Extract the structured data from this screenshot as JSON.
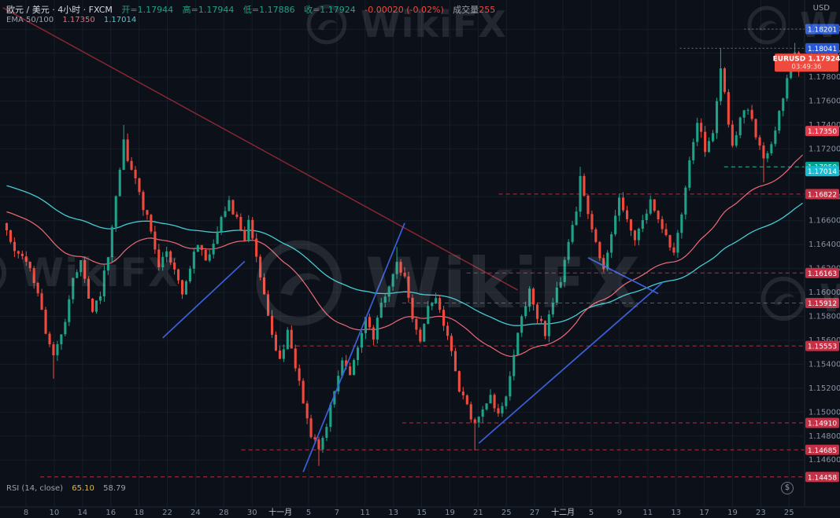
{
  "header": {
    "symbol_line": {
      "title": "欧元 / 美元 · 4小时 · FXCM",
      "open_label": "开=1.17944",
      "high_label": "高=1.17944",
      "low_label": "低=1.17886",
      "close_label": "收=1.17924",
      "change_label": "-0.00020 (-0.02%)",
      "volume_label": "成交量",
      "volume_value": "255"
    },
    "ema_line": {
      "name": "EMA 50/100",
      "ema50": "1.17350",
      "ema100": "1.17014"
    }
  },
  "rsi_line": {
    "name": "RSI (14, close)",
    "value1": "65.10",
    "value2": "58.79"
  },
  "axis_currency": "USD",
  "watermark_text": "WikiFX",
  "dollar_badge": "$",
  "colors": {
    "bg": "#0c1119",
    "grid": "#161d29",
    "up": "#1fa187",
    "down": "#ef4a3e",
    "axis_text": "#87909f",
    "axis_text_bright": "#c6cad3",
    "axis_border": "#1e2634"
  },
  "chart_data": {
    "type": "candlestick",
    "symbol": "EURUSD",
    "pair": "欧元 / 美元",
    "timeframe": "4小时",
    "exchange": "FXCM",
    "last": {
      "open": 1.17944,
      "high": 1.17944,
      "low": 1.17886,
      "close": 1.17924,
      "change": -0.0002,
      "change_pct": "-0.02%",
      "volume": 255,
      "countdown": "03:49:36"
    },
    "price_axis": {
      "min": 1.1424,
      "max": 1.1828,
      "tick_min": 1.146,
      "tick_max": 1.182,
      "tick_step": 0.002
    },
    "time_labels": [
      "8",
      "10",
      "14",
      "16",
      "18",
      "22",
      "24",
      "28",
      "30",
      "十一月",
      "5",
      "7",
      "11",
      "13",
      "15",
      "19",
      "21",
      "25",
      "27",
      "十二月",
      "5",
      "9",
      "11",
      "13",
      "17",
      "19",
      "23",
      "25"
    ],
    "levels": [
      {
        "label": "1.18201",
        "value": 1.18201,
        "badge": "#2757d6",
        "line": "dotted",
        "line_color": "#667083",
        "from": 0.925
      },
      {
        "label": "1.18041",
        "value": 1.18041,
        "badge": "#2757d6",
        "line": "dotted",
        "line_color": "#667083",
        "from": 0.845
      },
      {
        "label": "1.17350",
        "value": 1.1735,
        "badge": "#e13d4e",
        "line": "none",
        "line_color": "",
        "from": 0
      },
      {
        "label": "1.17050",
        "value": 1.1705,
        "badge": "#00a08f",
        "line": "dashed",
        "line_color": "#2bb3a3",
        "from": 0.9
      },
      {
        "label": "1.17014",
        "value": 1.17014,
        "badge": "#18bdd4",
        "line": "none",
        "line_color": "",
        "from": 0
      },
      {
        "label": "1.16822",
        "value": 1.16822,
        "badge": "#c43045",
        "line": "dashed",
        "line_color": "#b03044",
        "from": 0.62
      },
      {
        "label": "1.16163",
        "value": 1.16163,
        "badge": "#c43045",
        "line": "dashed",
        "line_color": "#b03044",
        "from": 0.58
      },
      {
        "label": "1.15912",
        "value": 1.15912,
        "badge": "#c43045",
        "line": "dashed",
        "line_color": "#b03044",
        "from": 0.5
      },
      {
        "label": "1.15553",
        "value": 1.15553,
        "badge": "#c43045",
        "line": "dashed",
        "line_color": "#b03044",
        "from": 0.35
      },
      {
        "label": "1.14910",
        "value": 1.1491,
        "badge": "#c43045",
        "line": "dashed",
        "line_color": "#b03044",
        "from": 0.5
      },
      {
        "label": "1.14685",
        "value": 1.14685,
        "badge": "#c43045",
        "line": "dashed",
        "line_color": "#b03044",
        "from": 0.3
      },
      {
        "label": "1.14458",
        "value": 1.14458,
        "badge": "#c43045",
        "line": "dashed",
        "line_color": "#b03044",
        "from": 0.05
      }
    ],
    "emas": [
      {
        "period": 50,
        "value": 1.1735,
        "color": "#f06878",
        "seed": 1.1668
      },
      {
        "period": 100,
        "value": 1.17014,
        "color": "#45ccd3",
        "seed": 1.169
      }
    ],
    "trendlines": [
      {
        "name": "downtrend",
        "color": "#8f2733",
        "width": 1.4,
        "p1": [
          -1,
          1.1838
        ],
        "p2": [
          131,
          1.1602
        ]
      },
      {
        "name": "support-1",
        "color": "#3a5fd9",
        "width": 1.7,
        "p1": [
          40,
          1.1562
        ],
        "p2": [
          61,
          1.1626
        ]
      },
      {
        "name": "support-2",
        "color": "#3a5fd9",
        "width": 1.7,
        "p1": [
          76,
          1.145
        ],
        "p2": [
          102,
          1.1658
        ]
      },
      {
        "name": "support-3",
        "color": "#3a5fd9",
        "width": 1.7,
        "p1": [
          121,
          1.1474
        ],
        "p2": [
          168,
          1.1608
        ]
      },
      {
        "name": "wedge-top",
        "color": "#3a5fd9",
        "width": 1.7,
        "p1": [
          149,
          1.1629
        ],
        "p2": [
          167,
          1.1599
        ]
      }
    ],
    "bar_count": 205,
    "close_waypoints": [
      [
        0,
        1.1652
      ],
      [
        2,
        1.1638
      ],
      [
        4,
        1.163
      ],
      [
        6,
        1.1618
      ],
      [
        8,
        1.16
      ],
      [
        10,
        1.1568
      ],
      [
        12,
        1.1546
      ],
      [
        14,
        1.1562
      ],
      [
        17,
        1.1612
      ],
      [
        19,
        1.1626
      ],
      [
        22,
        1.1582
      ],
      [
        24,
        1.1598
      ],
      [
        26,
        1.1632
      ],
      [
        28,
        1.1682
      ],
      [
        30,
        1.1728
      ],
      [
        31,
        1.1712
      ],
      [
        34,
        1.1682
      ],
      [
        37,
        1.1652
      ],
      [
        39,
        1.1622
      ],
      [
        41,
        1.1636
      ],
      [
        43,
        1.1616
      ],
      [
        45,
        1.16
      ],
      [
        47,
        1.1622
      ],
      [
        49,
        1.1642
      ],
      [
        51,
        1.1626
      ],
      [
        53,
        1.1642
      ],
      [
        55,
        1.1666
      ],
      [
        57,
        1.1676
      ],
      [
        59,
        1.166
      ],
      [
        61,
        1.1646
      ],
      [
        62,
        1.166
      ],
      [
        64,
        1.163
      ],
      [
        66,
        1.16
      ],
      [
        68,
        1.1562
      ],
      [
        70,
        1.1546
      ],
      [
        72,
        1.1566
      ],
      [
        74,
        1.154
      ],
      [
        76,
        1.1506
      ],
      [
        78,
        1.148
      ],
      [
        80,
        1.1469
      ],
      [
        82,
        1.149
      ],
      [
        84,
        1.152
      ],
      [
        86,
        1.1546
      ],
      [
        88,
        1.153
      ],
      [
        90,
        1.1552
      ],
      [
        92,
        1.1576
      ],
      [
        94,
        1.1562
      ],
      [
        96,
        1.159
      ],
      [
        98,
        1.1606
      ],
      [
        100,
        1.1626
      ],
      [
        102,
        1.161
      ],
      [
        104,
        1.158
      ],
      [
        106,
        1.156
      ],
      [
        108,
        1.1586
      ],
      [
        110,
        1.1596
      ],
      [
        112,
        1.157
      ],
      [
        114,
        1.1554
      ],
      [
        116,
        1.152
      ],
      [
        118,
        1.1506
      ],
      [
        120,
        1.1488
      ],
      [
        122,
        1.15
      ],
      [
        124,
        1.1516
      ],
      [
        126,
        1.1496
      ],
      [
        128,
        1.1512
      ],
      [
        130,
        1.1546
      ],
      [
        132,
        1.158
      ],
      [
        134,
        1.16
      ],
      [
        136,
        1.158
      ],
      [
        138,
        1.1566
      ],
      [
        140,
        1.1592
      ],
      [
        142,
        1.1612
      ],
      [
        144,
        1.1642
      ],
      [
        146,
        1.1668
      ],
      [
        147,
        1.1694
      ],
      [
        149,
        1.1668
      ],
      [
        151,
        1.164
      ],
      [
        153,
        1.162
      ],
      [
        155,
        1.1652
      ],
      [
        157,
        1.168
      ],
      [
        159,
        1.1664
      ],
      [
        161,
        1.1646
      ],
      [
        163,
        1.1662
      ],
      [
        165,
        1.1676
      ],
      [
        167,
        1.166
      ],
      [
        169,
        1.1646
      ],
      [
        171,
        1.1632
      ],
      [
        173,
        1.1668
      ],
      [
        175,
        1.1712
      ],
      [
        177,
        1.1744
      ],
      [
        179,
        1.172
      ],
      [
        181,
        1.1736
      ],
      [
        182,
        1.1762
      ],
      [
        183,
        1.179
      ],
      [
        184,
        1.1768
      ],
      [
        185,
        1.1742
      ],
      [
        186,
        1.172
      ],
      [
        188,
        1.1746
      ],
      [
        190,
        1.1756
      ],
      [
        192,
        1.1732
      ],
      [
        194,
        1.171
      ],
      [
        196,
        1.1722
      ],
      [
        198,
        1.1752
      ],
      [
        200,
        1.1776
      ],
      [
        202,
        1.18
      ],
      [
        203,
        1.1786
      ],
      [
        204,
        1.17924
      ]
    ],
    "wick_overrides": {
      "12": {
        "low": 1.1528
      },
      "30": {
        "high": 1.174
      },
      "80": {
        "low": 1.1455
      },
      "100": {
        "high": 1.1638
      },
      "120": {
        "low": 1.1468
      },
      "147": {
        "high": 1.1705
      },
      "183": {
        "high": 1.18041
      },
      "194": {
        "low": 1.1692
      },
      "202": {
        "high": 1.18085
      }
    },
    "rsi": {
      "period": 14,
      "source": "close",
      "values": [
        65.1,
        58.79
      ]
    }
  }
}
